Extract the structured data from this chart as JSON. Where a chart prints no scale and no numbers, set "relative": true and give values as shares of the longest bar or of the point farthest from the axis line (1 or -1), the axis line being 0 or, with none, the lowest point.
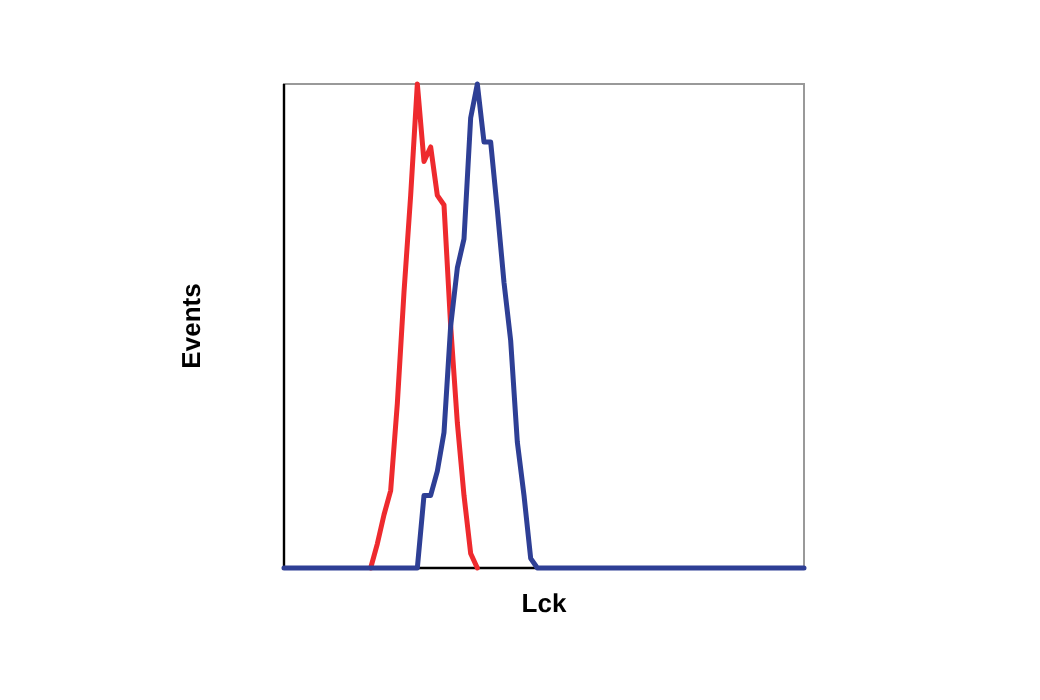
{
  "chart_data": {
    "type": "line",
    "xlabel": "Lck",
    "ylabel": "Events",
    "relative": true,
    "line_style": "solid",
    "categories": [
      null,
      null,
      null,
      null,
      null,
      null,
      null,
      null,
      null,
      null,
      null,
      null,
      null,
      null,
      null,
      null,
      null,
      null,
      null,
      null,
      null,
      null,
      null,
      null,
      null,
      null,
      null,
      null,
      null,
      null,
      null,
      null,
      null,
      null,
      null,
      null,
      null,
      null,
      null,
      null,
      null,
      null,
      null,
      null,
      null,
      null,
      null,
      null,
      null,
      null,
      null,
      null,
      null,
      null,
      null,
      null,
      null,
      null,
      null,
      null,
      null,
      null,
      null,
      null,
      null,
      null,
      null,
      null,
      null,
      null,
      null,
      null,
      null,
      null,
      null,
      null,
      null,
      null,
      null
    ],
    "series": [
      {
        "color": "#ee2a2e",
        "values": [
          null,
          null,
          null,
          null,
          null,
          null,
          null,
          null,
          null,
          null,
          null,
          null,
          null,
          0,
          0.05,
          0.11,
          0.16,
          0.34,
          0.57,
          0.77,
          1,
          0.84,
          0.87,
          0.77,
          0.75,
          0.5,
          0.3,
          0.15,
          0.03,
          0,
          null,
          null,
          null,
          null,
          null,
          null,
          null,
          null,
          null,
          null,
          null,
          null,
          null,
          null,
          null,
          null,
          null,
          null,
          null,
          null,
          null,
          null,
          null,
          null,
          null,
          null,
          null,
          null,
          null,
          null,
          null,
          null,
          null,
          null,
          null,
          null,
          null,
          null,
          null,
          null,
          null,
          null,
          null,
          null,
          null,
          null,
          null,
          null,
          null
        ]
      },
      {
        "color": "#2e3f95",
        "values": [
          0,
          0,
          0,
          0,
          0,
          0,
          0,
          0,
          0,
          0,
          0,
          0,
          0,
          0,
          0,
          0,
          0,
          0,
          0,
          0,
          0,
          0.15,
          0.15,
          0.2,
          0.28,
          0.5,
          0.62,
          0.68,
          0.93,
          1,
          0.88,
          0.88,
          0.74,
          0.59,
          0.47,
          0.26,
          0.15,
          0.02,
          0,
          0,
          0,
          0,
          0,
          0,
          0,
          0,
          0,
          0,
          0,
          0,
          0,
          0,
          0,
          0,
          0,
          0,
          0,
          0,
          0,
          0,
          0,
          0,
          0,
          0,
          0,
          0,
          0,
          0,
          0,
          0,
          0,
          0,
          0,
          0,
          0,
          0,
          0,
          0,
          0
        ]
      }
    ]
  }
}
